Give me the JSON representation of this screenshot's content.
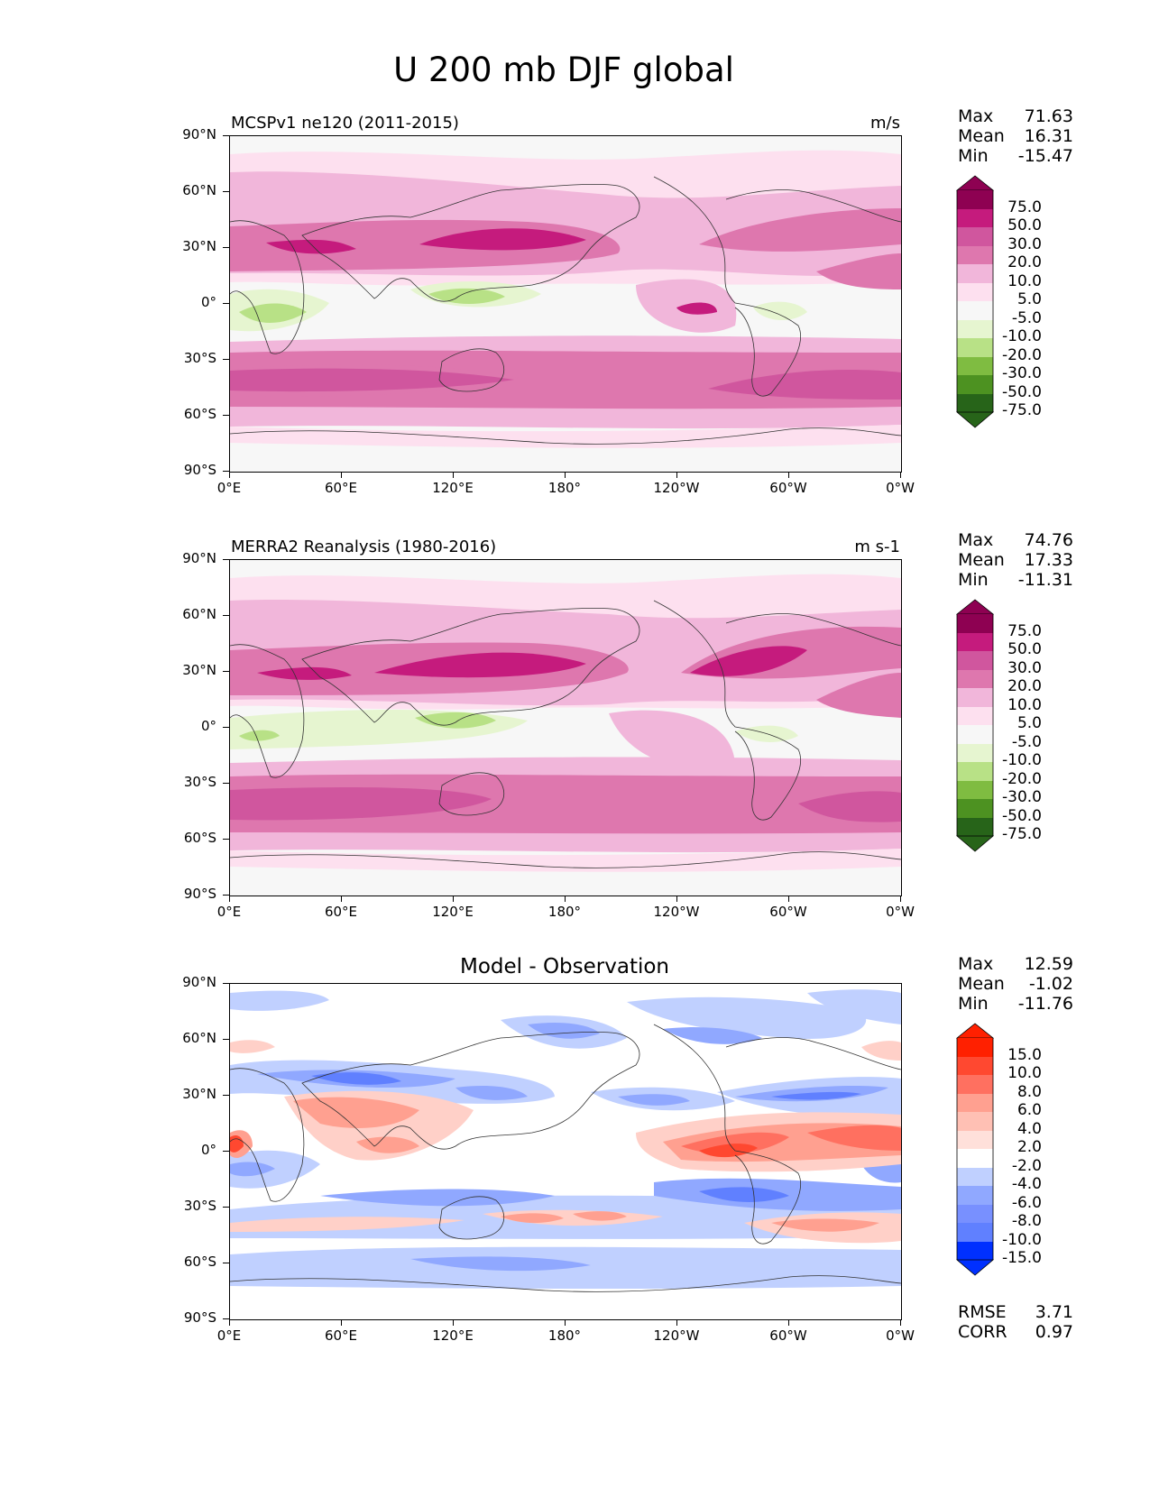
{
  "title": "U 200 mb DJF global",
  "latitude_ticks": [
    "90°N",
    "60°N",
    "30°N",
    "0°",
    "30°S",
    "60°S",
    "90°S"
  ],
  "longitude_ticks": [
    "0°E",
    "60°E",
    "120°E",
    "180°",
    "120°W",
    "60°W",
    "0°W"
  ],
  "colors": {
    "background": "#f7f7f7",
    "field_scale": [
      "#276419",
      "#4d9221",
      "#7fbc41",
      "#b8e186",
      "#e6f5d0",
      "#f7f7f7",
      "#fde0ef",
      "#f1b6da",
      "#de77ae",
      "#c51b7d",
      "#8e0152"
    ],
    "diff_scale": [
      "#0030ff",
      "#3060ff",
      "#6080ff",
      "#90a8ff",
      "#c0d0ff",
      "#ffffff",
      "#ffd0c8",
      "#ffa090",
      "#ff7060",
      "#ff4830",
      "#ff2000"
    ]
  },
  "panels": [
    {
      "title_left": "MCSPv1 ne120 (2011-2015)",
      "title_right": "m/s",
      "stats": {
        "max_label": "Max",
        "max": "71.63",
        "mean_label": "Mean",
        "mean": "16.31",
        "min_label": "Min",
        "min": "-15.47"
      },
      "colorbar_labels": [
        "75.0",
        "50.0",
        "30.0",
        "20.0",
        "10.0",
        "5.0",
        "-5.0",
        "-10.0",
        "-20.0",
        "-30.0",
        "-50.0",
        "-75.0"
      ]
    },
    {
      "title_left": "MERRA2 Reanalysis (1980-2016)",
      "title_right": "m s-1",
      "stats": {
        "max_label": "Max",
        "max": "74.76",
        "mean_label": "Mean",
        "mean": "17.33",
        "min_label": "Min",
        "min": "-11.31"
      },
      "colorbar_labels": [
        "75.0",
        "50.0",
        "30.0",
        "20.0",
        "10.0",
        "5.0",
        "-5.0",
        "-10.0",
        "-20.0",
        "-30.0",
        "-50.0",
        "-75.0"
      ]
    },
    {
      "title_center": "Model - Observation",
      "stats": {
        "max_label": "Max",
        "max": "12.59",
        "mean_label": "Mean",
        "mean": "-1.02",
        "min_label": "Min",
        "min": "-11.76"
      },
      "colorbar_labels": [
        "15.0",
        "10.0",
        "8.0",
        "6.0",
        "4.0",
        "2.0",
        "-2.0",
        "-4.0",
        "-6.0",
        "-8.0",
        "-10.0",
        "-15.0"
      ],
      "metrics": {
        "rmse_label": "RMSE",
        "rmse": "3.71",
        "corr_label": "CORR",
        "corr": "0.97"
      }
    }
  ]
}
